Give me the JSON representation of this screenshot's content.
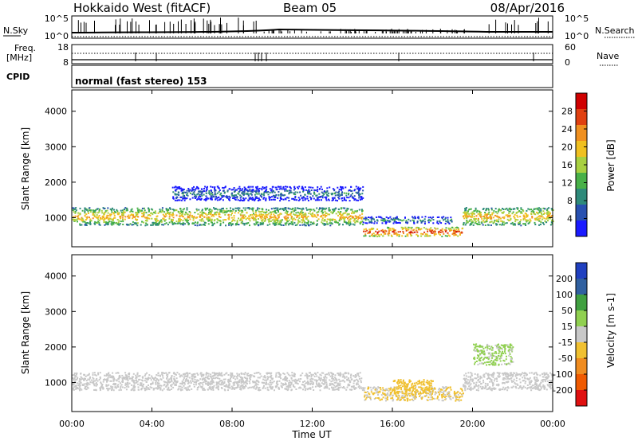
{
  "header": {
    "station": "Hokkaido West (fitACF)",
    "beam": "Beam 05",
    "date": "08/Apr/2016"
  },
  "noise_panel": {
    "left_label": "N.Sky",
    "right_label": "N.Search",
    "left_ticks": [
      "10^5",
      "10^0"
    ],
    "right_ticks": [
      "10^5",
      "10^0"
    ]
  },
  "freq_panel": {
    "left_label_top": "Freq.",
    "left_label_unit": "[MHz]",
    "left_ticks": [
      "18",
      "8"
    ],
    "right_label": "Nave",
    "right_ticks": [
      "60",
      "0"
    ]
  },
  "cpid_panel": {
    "label": "CPID",
    "mode_text": "normal (fast stereo) 153"
  },
  "chart_data": [
    {
      "type": "heatmap",
      "name": "power",
      "ylabel": "Slant Range [km]",
      "xlabel": "Time UT",
      "x_range_hours": [
        0,
        24
      ],
      "x_tick_labels": [
        "00:00",
        "04:00",
        "08:00",
        "12:00",
        "16:00",
        "20:00",
        "00:00"
      ],
      "ylim": [
        180,
        4600
      ],
      "y_ticks": [
        1000,
        2000,
        3000,
        4000
      ],
      "colorbar_label": "Power [dB]",
      "colorbar_ticks": [
        "4",
        "8",
        "12",
        "16",
        "20",
        "24",
        "28"
      ],
      "colorbar_range": [
        0,
        32
      ],
      "colors": [
        "#1a1aff",
        "#2850b0",
        "#2e8a7a",
        "#48b048",
        "#a8d040",
        "#f0c020",
        "#f09020",
        "#e04010",
        "#d00000"
      ],
      "bands": [
        {
          "t_start": 0,
          "t_end": 14.5,
          "range_center_km": 1050,
          "range_halfwidth_km": 250,
          "power_db": 22
        },
        {
          "t_start": 19.5,
          "t_end": 24,
          "range_center_km": 1050,
          "range_halfwidth_km": 250,
          "power_db": 22
        },
        {
          "t_start": 14.5,
          "t_end": 19.5,
          "range_center_km": 620,
          "range_halfwidth_km": 130,
          "power_db": 28
        },
        {
          "t_start": 14.5,
          "t_end": 19.0,
          "range_center_km": 950,
          "range_halfwidth_km": 100,
          "power_db": 12
        },
        {
          "t_start": 5.0,
          "t_end": 14.5,
          "range_center_km": 1700,
          "range_halfwidth_km": 200,
          "power_db": 10
        }
      ]
    },
    {
      "type": "heatmap",
      "name": "velocity",
      "ylabel": "Slant Range [km]",
      "xlabel": "Time UT",
      "x_range_hours": [
        0,
        24
      ],
      "x_tick_labels": [
        "00:00",
        "04:00",
        "08:00",
        "12:00",
        "16:00",
        "20:00",
        "00:00"
      ],
      "ylim": [
        180,
        4600
      ],
      "y_ticks": [
        1000,
        2000,
        3000,
        4000
      ],
      "colorbar_label": "Velocity [m s-1]",
      "colorbar_ticks": [
        "200",
        "100",
        "50",
        "15",
        "-15",
        "-50",
        "-100",
        "-200"
      ],
      "colorbar_range": [
        -250,
        250
      ],
      "colors": [
        "#e01010",
        "#f05a00",
        "#f08c20",
        "#f0c030",
        "#c8c8c8",
        "#90d050",
        "#40a040",
        "#3060a0",
        "#2040c0"
      ],
      "bands": [
        {
          "t_start": 0,
          "t_end": 14.5,
          "range_center_km": 1050,
          "range_halfwidth_km": 250,
          "velocity": 0
        },
        {
          "t_start": 19.5,
          "t_end": 24,
          "range_center_km": 1050,
          "range_halfwidth_km": 250,
          "velocity": 0
        },
        {
          "t_start": 14.5,
          "t_end": 19.5,
          "range_center_km": 700,
          "range_halfwidth_km": 200,
          "velocity": -30
        },
        {
          "t_start": 16.0,
          "t_end": 18.0,
          "range_center_km": 900,
          "range_halfwidth_km": 200,
          "velocity": -60
        },
        {
          "t_start": 20.0,
          "t_end": 22.0,
          "range_center_km": 1800,
          "range_halfwidth_km": 300,
          "velocity": 40
        }
      ]
    }
  ]
}
